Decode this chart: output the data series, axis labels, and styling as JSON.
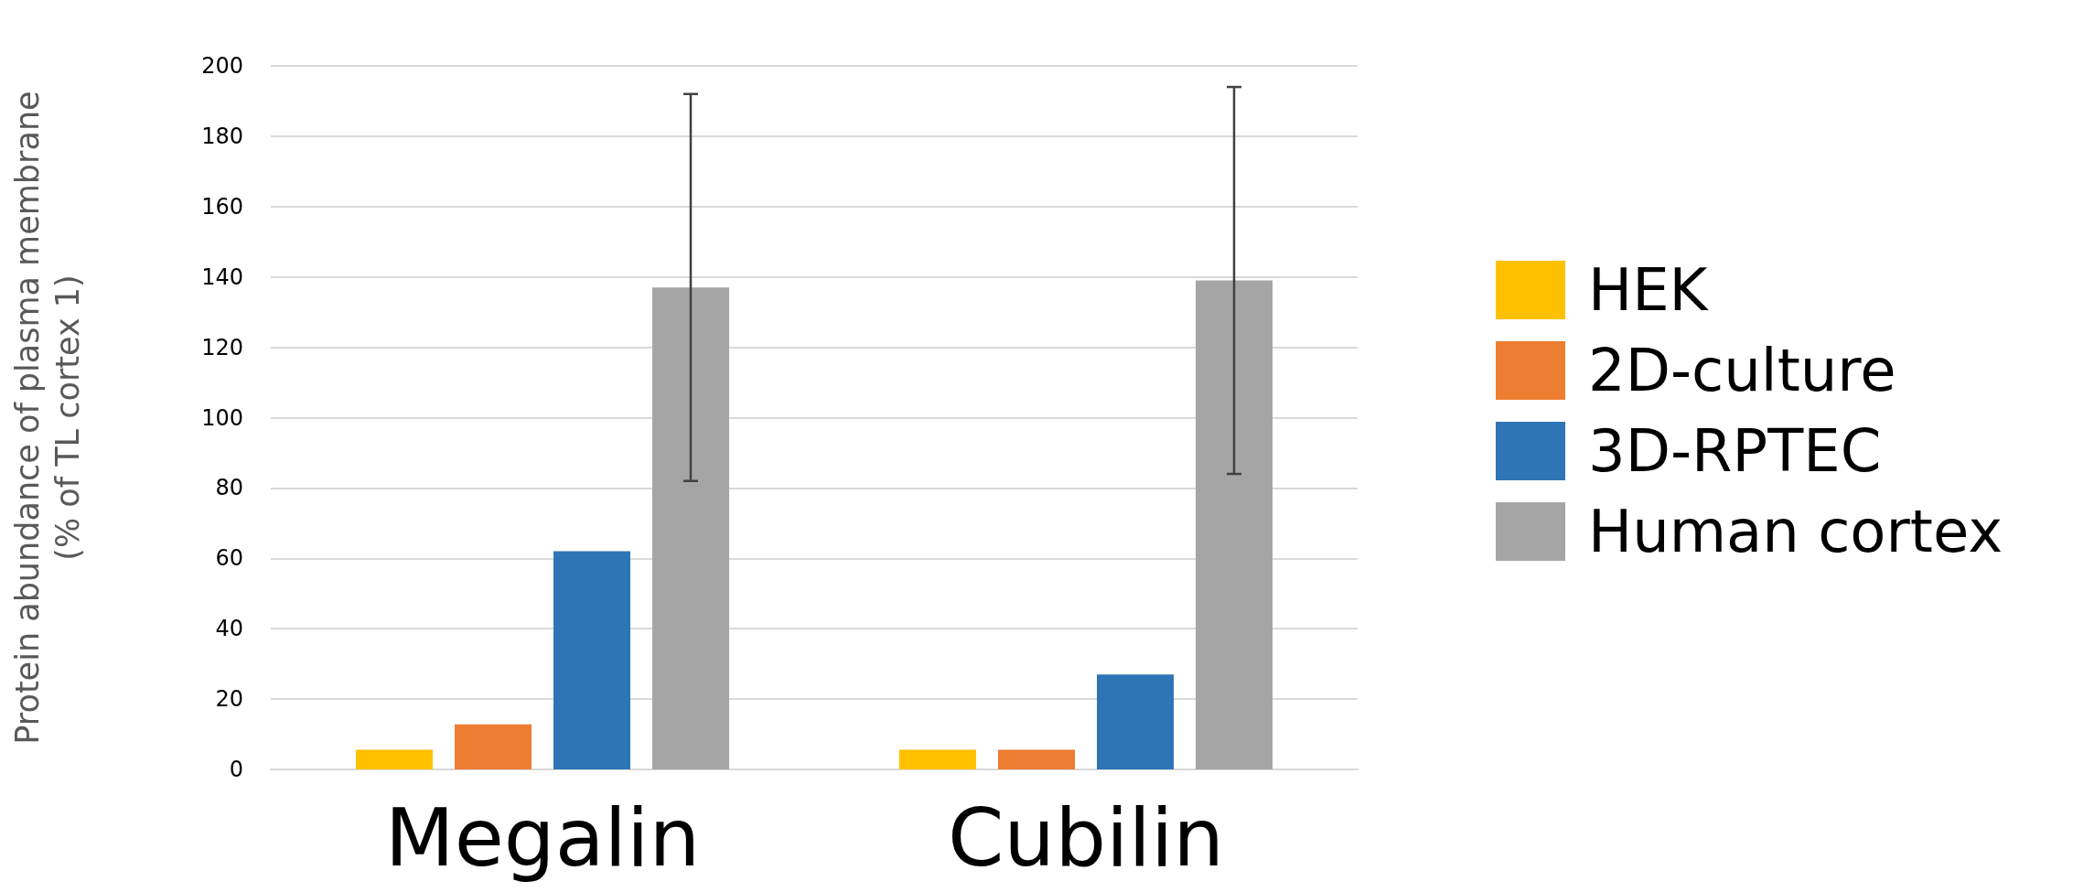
{
  "chart_data": {
    "type": "bar",
    "ylabel": "Protein abundance of plasma membrane\n(% of TL cortex 1)",
    "categories": [
      "Megalin",
      "Cubilin"
    ],
    "series": [
      {
        "name": "HEK",
        "color": "#ffc000",
        "values": [
          5.6,
          5.6
        ]
      },
      {
        "name": "2D-culture",
        "color": "#ed7d31",
        "values": [
          12.8,
          5.6
        ]
      },
      {
        "name": "3D-RPTEC",
        "color": "#2e75b6",
        "values": [
          62,
          27
        ]
      },
      {
        "name": "Human cortex",
        "color": "#a5a5a5",
        "values": [
          137,
          139
        ],
        "errors": [
          55,
          55
        ]
      }
    ],
    "ylim": [
      0,
      200
    ],
    "yticks": [
      0,
      20,
      40,
      60,
      80,
      100,
      120,
      140,
      160,
      180,
      200
    ],
    "grid": "y",
    "legend": "right"
  }
}
